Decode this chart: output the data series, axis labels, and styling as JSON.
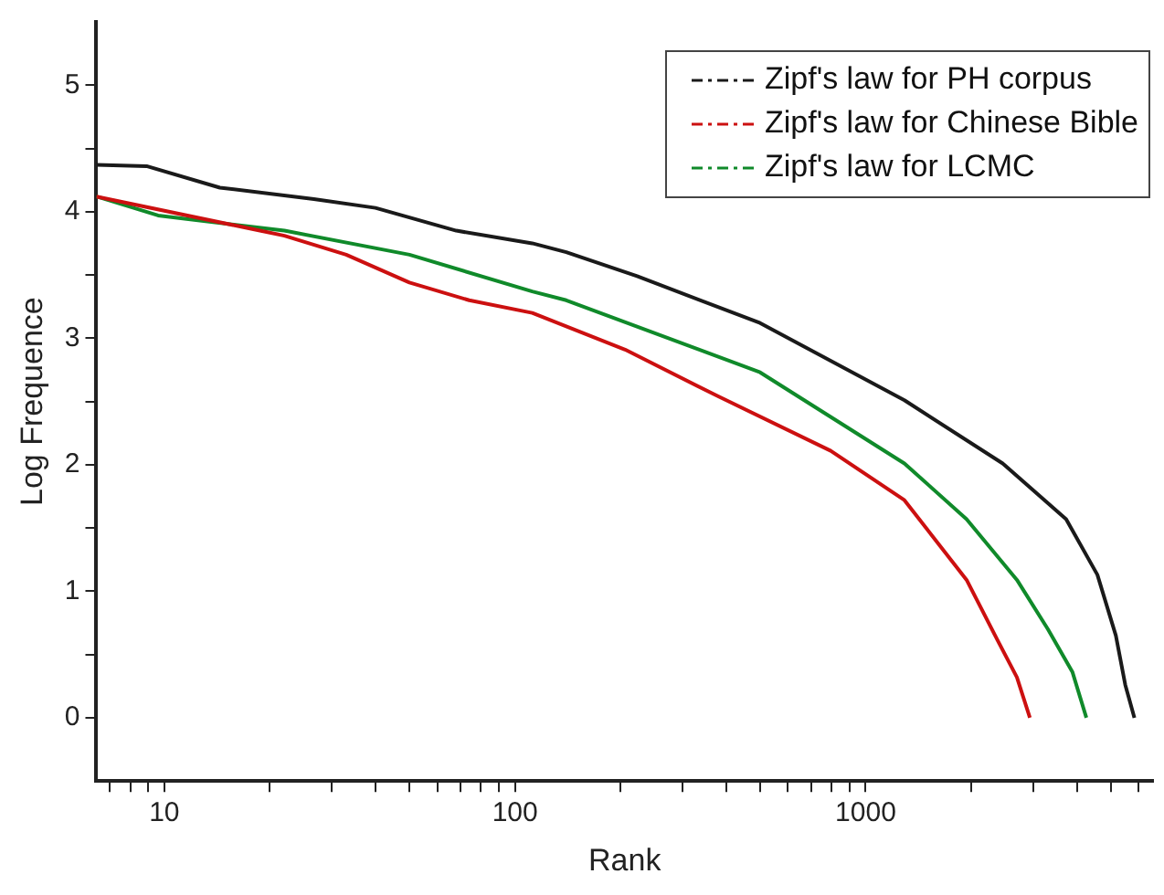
{
  "chart_data": {
    "type": "line",
    "xlabel": "Rank",
    "ylabel": "Log Frequence",
    "log": "x",
    "legend": "top right",
    "marker": "none",
    "line_style": "solid",
    "grid": false,
    "xlim": [
      6.4,
      6600
    ],
    "ylim": [
      -0.5,
      5.5
    ],
    "xticks": [
      {
        "value": 7,
        "label": null
      },
      {
        "value": 8,
        "label": null
      },
      {
        "value": 9,
        "label": null
      },
      10,
      {
        "value": 20,
        "label": null
      },
      {
        "value": 30,
        "label": null
      },
      {
        "value": 40,
        "label": null
      },
      {
        "value": 50,
        "label": null
      },
      {
        "value": 60,
        "label": null
      },
      {
        "value": 70,
        "label": null
      },
      {
        "value": 80,
        "label": null
      },
      {
        "value": 90,
        "label": null
      },
      100,
      {
        "value": 200,
        "label": null
      },
      {
        "value": 300,
        "label": null
      },
      {
        "value": 400,
        "label": null
      },
      {
        "value": 500,
        "label": null
      },
      {
        "value": 600,
        "label": null
      },
      {
        "value": 700,
        "label": null
      },
      {
        "value": 800,
        "label": null
      },
      {
        "value": 900,
        "label": null
      },
      1000,
      {
        "value": 2000,
        "label": null
      },
      {
        "value": 3000,
        "label": null
      },
      {
        "value": 4000,
        "label": null
      },
      {
        "value": 5000,
        "label": null
      },
      {
        "value": 6000,
        "label": null
      }
    ],
    "yticks": [
      0,
      {
        "value": 0.5,
        "label": null
      },
      1,
      {
        "value": 1.5,
        "label": null
      },
      2,
      {
        "value": 2.5,
        "label": null
      },
      3,
      {
        "value": 3.5,
        "label": null
      },
      4,
      {
        "value": 4.5,
        "label": null
      },
      5
    ],
    "series": [
      {
        "name": "Zipf's law for PH corpus",
        "color": "#1a1a1a",
        "x": [
          6.4,
          8.9,
          14.4,
          26.7,
          40,
          68,
          112,
          140,
          223,
          500,
          1290,
          2460,
          3730,
          4580,
          5170,
          5500,
          5840
        ],
        "values": [
          4.37,
          4.36,
          4.19,
          4.1,
          4.03,
          3.85,
          3.75,
          3.68,
          3.49,
          3.12,
          2.51,
          2.01,
          1.57,
          1.13,
          0.65,
          0.26,
          0
        ]
      },
      {
        "name": "Zipf's law for Chinese Bible",
        "color": "#cc1010",
        "x": [
          6.4,
          22,
          33,
          50,
          74,
          112,
          206,
          380,
          795,
          1290,
          1940,
          2380,
          2700,
          2940
        ],
        "values": [
          4.12,
          3.81,
          3.66,
          3.44,
          3.3,
          3.2,
          2.91,
          2.54,
          2.11,
          1.72,
          1.09,
          0.61,
          0.32,
          0
        ]
      },
      {
        "name": "Zipf's law for LCMC",
        "color": "#108a2a",
        "x": [
          6.4,
          9.6,
          22,
          50,
          112,
          140,
          500,
          1290,
          1940,
          2700,
          3310,
          3890,
          4260
        ],
        "values": [
          4.12,
          3.97,
          3.85,
          3.66,
          3.37,
          3.3,
          2.73,
          2.01,
          1.57,
          1.09,
          0.7,
          0.36,
          0
        ]
      }
    ]
  }
}
